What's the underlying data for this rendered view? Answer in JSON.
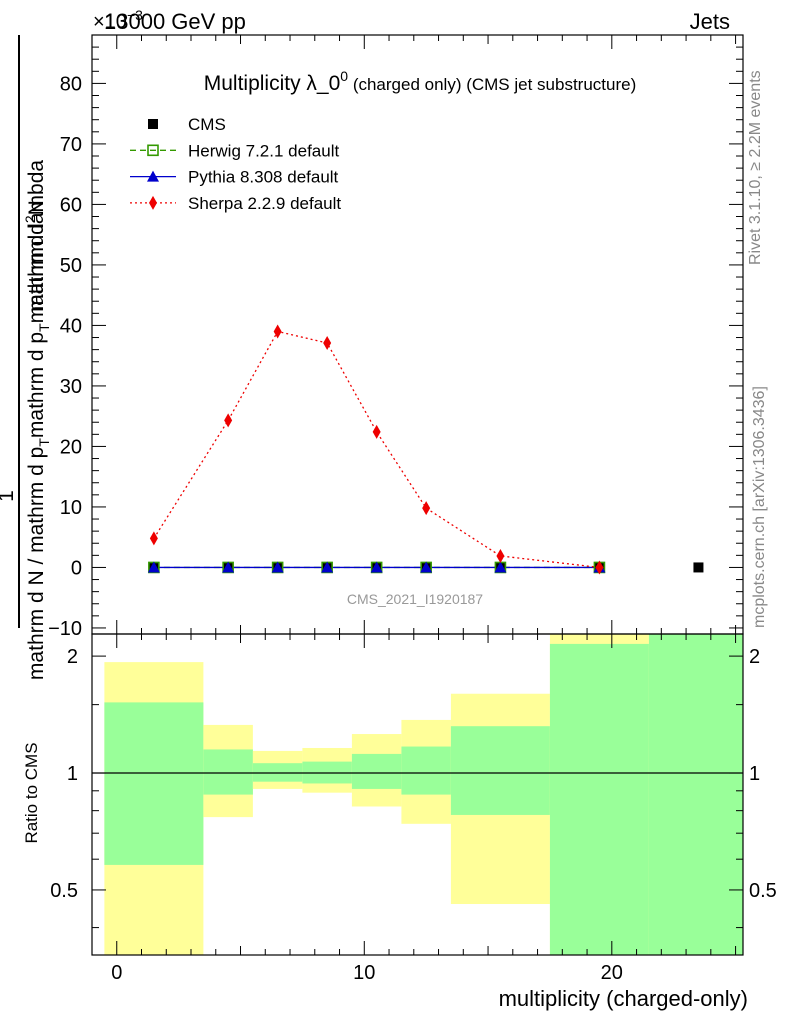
{
  "header": {
    "collision": "13000 GeV pp",
    "process": "Jets",
    "exponent": "×10",
    "exponent_power": "−3"
  },
  "side_labels": {
    "rivet": "Rivet 3.1.10, ≥ 2.2M events",
    "mcplots": "mcplots.cern.ch [arXiv:1306.3436]"
  },
  "watermark": "CMS_2021_I1920187",
  "chart_data": [
    {
      "type": "line",
      "title": "Multiplicity λ_0",
      "title_sup": "0",
      "subtitle": " (charged only) (CMS jet substructure)",
      "ylabel": "1 / mathrm d N / mathrm d p_T mathrm d p_T mathrm d lambda mathrm d^2N",
      "xlim": [
        -1,
        25.3
      ],
      "ylim": [
        -11,
        88
      ],
      "yticks": [
        -10,
        0,
        10,
        20,
        30,
        40,
        50,
        60,
        70,
        80
      ],
      "legend": {
        "placement": "top-left",
        "entries": [
          {
            "label": "CMS",
            "color": "#000000",
            "marker": "square"
          },
          {
            "label": "Herwig 7.2.1 default",
            "color": "#339900",
            "marker": "open-square",
            "dash": "dashed"
          },
          {
            "label": "Pythia 8.308 default",
            "color": "#0000cc",
            "marker": "triangle",
            "dash": "solid"
          },
          {
            "label": "Sherpa 2.2.9 default",
            "color": "#ee0000",
            "marker": "diamond",
            "dash": "dotted"
          }
        ]
      },
      "series": [
        {
          "name": "CMS",
          "x": [
            1.5,
            4.5,
            6.5,
            8.5,
            10.5,
            12.5,
            15.5,
            19.5,
            23.5
          ],
          "y": [
            0,
            0,
            0,
            0,
            0,
            0,
            0,
            0,
            0
          ]
        },
        {
          "name": "Herwig 7.2.1 default",
          "x": [
            1.5,
            4.5,
            6.5,
            8.5,
            10.5,
            12.5,
            15.5,
            19.5
          ],
          "y": [
            0,
            0,
            0,
            0,
            0,
            0,
            0,
            0
          ]
        },
        {
          "name": "Pythia 8.308 default",
          "x": [
            1.5,
            4.5,
            6.5,
            8.5,
            10.5,
            12.5,
            15.5,
            19.5
          ],
          "y": [
            0,
            0,
            0,
            0,
            0,
            0,
            0,
            0
          ]
        },
        {
          "name": "Sherpa 2.2.9 default",
          "x": [
            1.5,
            4.5,
            6.5,
            8.5,
            10.5,
            12.5,
            15.5,
            19.5
          ],
          "y": [
            4.8,
            24.3,
            39.0,
            37.1,
            22.4,
            9.8,
            1.9,
            0.0
          ]
        }
      ]
    },
    {
      "type": "area",
      "ylabel": "Ratio to CMS",
      "xlabel": "multiplicity (charged-only)",
      "xlim": [
        -1,
        25.3
      ],
      "xticks": [
        0,
        10,
        20
      ],
      "ylim": [
        0.34,
        2.28
      ],
      "yscale": "log",
      "yticks": [
        0.5,
        1,
        2
      ],
      "reference_line": 1,
      "colors": {
        "inner": "#99ff99",
        "outer": "#ffff99"
      },
      "bands": [
        {
          "xlo": -0.5,
          "xhi": 3.5,
          "inner": [
            0.58,
            1.52
          ],
          "outer": [
            0.34,
            1.93
          ]
        },
        {
          "xlo": 3.5,
          "xhi": 5.5,
          "inner": [
            0.88,
            1.15
          ],
          "outer": [
            0.77,
            1.33
          ]
        },
        {
          "xlo": 5.5,
          "xhi": 7.5,
          "inner": [
            0.95,
            1.06
          ],
          "outer": [
            0.91,
            1.14
          ]
        },
        {
          "xlo": 7.5,
          "xhi": 9.5,
          "inner": [
            0.94,
            1.07
          ],
          "outer": [
            0.89,
            1.16
          ]
        },
        {
          "xlo": 9.5,
          "xhi": 11.5,
          "inner": [
            0.91,
            1.12
          ],
          "outer": [
            0.82,
            1.26
          ]
        },
        {
          "xlo": 11.5,
          "xhi": 13.5,
          "inner": [
            0.88,
            1.17
          ],
          "outer": [
            0.74,
            1.37
          ]
        },
        {
          "xlo": 13.5,
          "xhi": 17.5,
          "inner": [
            0.78,
            1.32
          ],
          "outer": [
            0.46,
            1.6
          ]
        },
        {
          "xlo": 17.5,
          "xhi": 21.5,
          "inner": [
            0.34,
            2.15
          ],
          "outer": [
            0.34,
            2.28
          ]
        },
        {
          "xlo": 21.5,
          "xhi": 25.5,
          "inner": [
            0.34,
            2.28
          ],
          "outer": [
            0.34,
            2.28
          ]
        }
      ]
    }
  ]
}
